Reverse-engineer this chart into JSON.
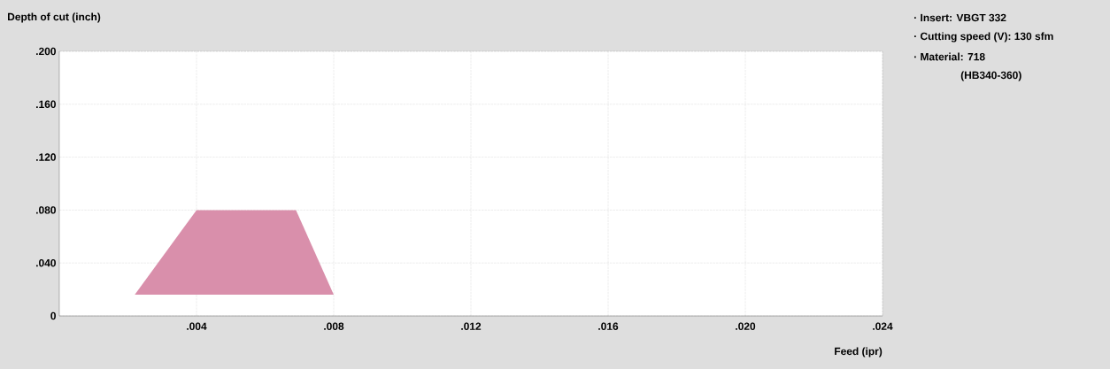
{
  "chart_data": {
    "type": "area",
    "xlabel": "Feed (ipr)",
    "ylabel": "Depth of cut (inch)",
    "annotations": [
      "· Insert: VBGT 332",
      "· Cutting speed (V): 130 sfm",
      "· Material: 718",
      "(HB340-360)"
    ],
    "x": [
      0.0022,
      0.004,
      0.0069,
      0.008,
      0.0022
    ],
    "series": [
      {
        "color": "#d98fab",
        "values": [
          0.016,
          0.08,
          0.08,
          0.016,
          0.016
        ]
      }
    ],
    "xlim": [
      0,
      0.024
    ],
    "ylim": [
      0,
      0.2
    ],
    "xticks": [
      {
        "value": 0.004,
        "label": ".004"
      },
      {
        "value": 0.008,
        "label": ".008"
      },
      {
        "value": 0.012,
        "label": ".012"
      },
      {
        "value": 0.016,
        "label": ".016"
      },
      {
        "value": 0.02,
        "label": ".020"
      },
      {
        "value": 0.024,
        "label": ".024"
      }
    ],
    "yticks": [
      0,
      {
        "value": 0.04,
        "label": ".040"
      },
      {
        "value": 0.08,
        "label": ".080"
      },
      {
        "value": 0.12,
        "label": ".120"
      },
      {
        "value": 0.16,
        "label": ".160"
      },
      {
        "value": 0.2,
        "label": ".200"
      }
    ],
    "grid": true
  }
}
